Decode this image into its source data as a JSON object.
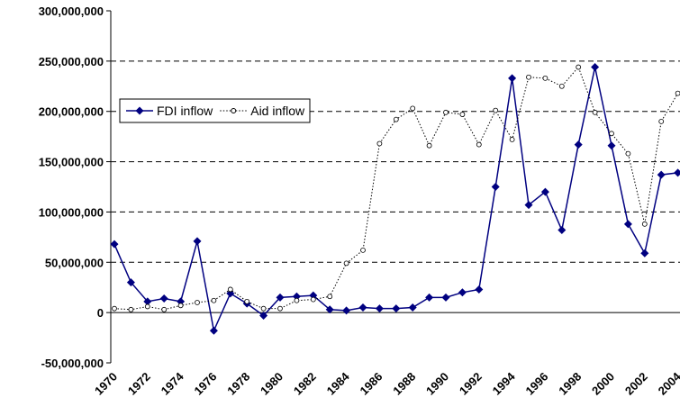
{
  "chart_data": {
    "type": "line",
    "categories": [
      "1970",
      null,
      "1972",
      null,
      "1974",
      null,
      "1976",
      null,
      "1978",
      null,
      "1980",
      null,
      "1982",
      null,
      "1984",
      null,
      "1986",
      null,
      "1988",
      null,
      "1990",
      null,
      "1992",
      null,
      "1994",
      null,
      "1996",
      null,
      "1998",
      null,
      "2000",
      null,
      "2002",
      null,
      "2004"
    ],
    "series": [
      {
        "name": "FDI inflow",
        "color": "#000080",
        "marker": "diamond",
        "dash": "solid",
        "values": [
          68000000,
          30000000,
          11000000,
          14000000,
          11000000,
          71000000,
          -18000000,
          19000000,
          9000000,
          -3000000,
          15000000,
          16000000,
          17000000,
          3000000,
          2000000,
          5000000,
          4000000,
          4000000,
          5000000,
          15000000,
          15000000,
          20000000,
          23000000,
          125000000,
          233000000,
          107000000,
          120000000,
          82000000,
          167000000,
          244000000,
          166000000,
          88000000,
          59000000,
          137000000,
          139000000
        ]
      },
      {
        "name": "Aid inflow",
        "color": "#000000",
        "marker": "circle",
        "dash": "dotted",
        "values": [
          4000000,
          3000000,
          6000000,
          3000000,
          7000000,
          10000000,
          12000000,
          23000000,
          11000000,
          4000000,
          4000000,
          12000000,
          13000000,
          16000000,
          49000000,
          62000000,
          168000000,
          192000000,
          203000000,
          166000000,
          199000000,
          197000000,
          167000000,
          201000000,
          172000000,
          234000000,
          233000000,
          225000000,
          244000000,
          199000000,
          178000000,
          158000000,
          88000000,
          190000000,
          218000000
        ]
      }
    ],
    "ylim": [
      -50000000,
      300000000
    ],
    "yticks": [
      {
        "value": -50000000,
        "label": "-50,000,000"
      },
      0,
      {
        "value": 50000000,
        "label": "50,000,000"
      },
      {
        "value": 100000000,
        "label": "100,000,000"
      },
      {
        "value": 150000000,
        "label": "150,000,000"
      },
      {
        "value": 200000000,
        "label": "200,000,000"
      },
      {
        "value": 250000000,
        "label": "250,000,000"
      },
      {
        "value": 300000000,
        "label": "300,000,000"
      }
    ],
    "grid": true,
    "legend": "left"
  }
}
